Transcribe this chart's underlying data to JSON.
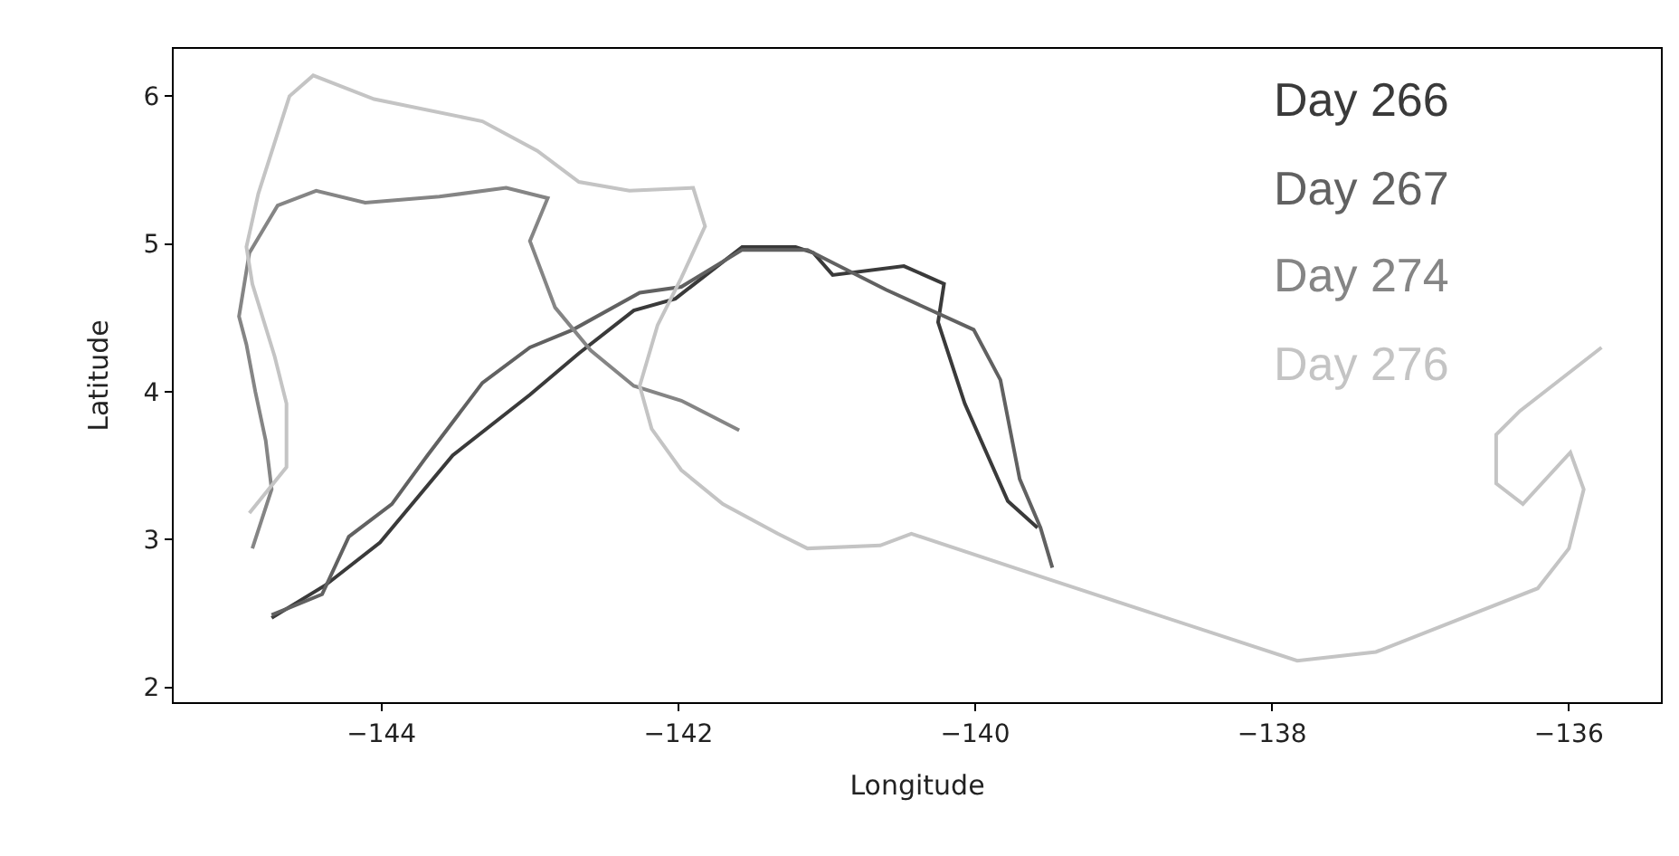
{
  "chart_data": {
    "type": "line",
    "xlabel": "Longitude",
    "ylabel": "Latitude",
    "xlim": [
      -145.4,
      -135.38
    ],
    "ylim": [
      1.9,
      6.32
    ],
    "xticks": [
      -144,
      -142,
      -140,
      -138,
      -136
    ],
    "yticks": [
      2,
      3,
      4,
      5,
      6
    ],
    "grid": false,
    "legend": "top right",
    "marker": "none",
    "line_style": "solid",
    "series": [
      {
        "name": "Day 266",
        "color": "#3a3a3a",
        "x": [
          -144.74,
          -144.38,
          -144.01,
          -143.52,
          -143.0,
          -142.67,
          -142.3,
          -142.02,
          -141.57,
          -141.21,
          -141.09,
          -140.96,
          -140.48,
          -140.21,
          -140.25,
          -140.07,
          -139.78,
          -139.58
        ],
        "values": [
          2.47,
          2.69,
          2.98,
          3.57,
          3.98,
          4.26,
          4.55,
          4.63,
          4.98,
          4.98,
          4.94,
          4.79,
          4.85,
          4.73,
          4.47,
          3.92,
          3.26,
          3.08
        ]
      },
      {
        "name": "Day 267",
        "color": "#616161",
        "x": [
          -144.74,
          -144.4,
          -144.22,
          -143.93,
          -143.69,
          -143.32,
          -143.0,
          -142.71,
          -142.26,
          -141.98,
          -141.57,
          -141.13,
          -140.6,
          -140.01,
          -139.83,
          -139.7,
          -139.56,
          -139.48
        ],
        "values": [
          2.49,
          2.63,
          3.02,
          3.24,
          3.57,
          4.06,
          4.3,
          4.42,
          4.67,
          4.71,
          4.96,
          4.96,
          4.69,
          4.42,
          4.08,
          3.41,
          3.08,
          2.81
        ]
      },
      {
        "name": "Day 274",
        "color": "#858585",
        "x": [
          -144.87,
          -144.74,
          -144.78,
          -144.85,
          -144.91,
          -144.96,
          -144.89,
          -144.7,
          -144.44,
          -144.11,
          -143.61,
          -143.16,
          -142.88,
          -143.0,
          -142.83,
          -142.59,
          -142.3,
          -141.98,
          -141.59
        ],
        "values": [
          2.94,
          3.34,
          3.67,
          4.0,
          4.32,
          4.51,
          4.94,
          5.26,
          5.36,
          5.28,
          5.32,
          5.38,
          5.31,
          5.02,
          4.57,
          4.28,
          4.04,
          3.94,
          3.74
        ]
      },
      {
        "name": "Day 276",
        "color": "#c4c4c4",
        "x": [
          -144.89,
          -144.64,
          -144.64,
          -144.72,
          -144.87,
          -144.91,
          -144.83,
          -144.62,
          -144.46,
          -144.05,
          -143.32,
          -142.95,
          -142.67,
          -142.33,
          -141.9,
          -141.82,
          -141.98,
          -142.14,
          -142.26,
          -142.18,
          -141.98,
          -141.7,
          -141.33,
          -141.13,
          -140.64,
          -140.43,
          -139.5,
          -137.83,
          -137.3,
          -136.21,
          -136.0,
          -135.9,
          -135.99,
          -136.31,
          -136.49,
          -136.49,
          -136.33,
          -135.78
        ],
        "values": [
          3.18,
          3.49,
          3.92,
          4.24,
          4.73,
          4.98,
          5.34,
          6.0,
          6.14,
          5.98,
          5.83,
          5.63,
          5.42,
          5.36,
          5.38,
          5.12,
          4.77,
          4.45,
          4.04,
          3.75,
          3.47,
          3.24,
          3.04,
          2.94,
          2.96,
          3.04,
          2.73,
          2.18,
          2.24,
          2.67,
          2.94,
          3.34,
          3.59,
          3.24,
          3.38,
          3.71,
          3.87,
          4.3
        ]
      }
    ]
  }
}
